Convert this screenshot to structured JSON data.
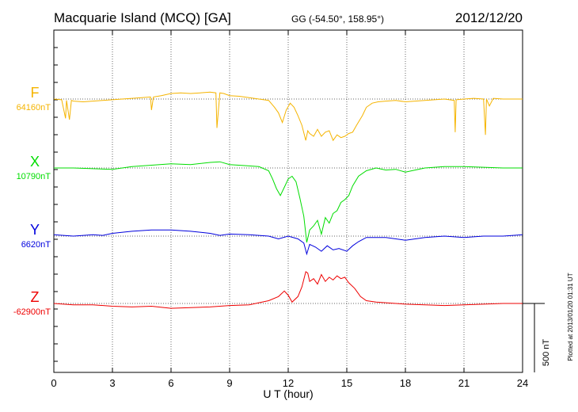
{
  "header": {
    "station": "Macquarie Island (MCQ)  [GA]",
    "coords": "GG (-54.50°, 158.95°)",
    "date": "2012/12/20"
  },
  "plotted_note": "Plotted at 2013/01/20 01:31  UT",
  "scale_bar_label": "500 nT",
  "chart_data": {
    "type": "line",
    "xlabel": "U T (hour)",
    "xlim": [
      0,
      24
    ],
    "xticks": [
      0,
      3,
      6,
      9,
      12,
      15,
      18,
      21,
      24
    ],
    "grid": true,
    "scale_bar_nT": 500,
    "series": [
      {
        "name": "F",
        "baseline_label": "64160nT",
        "color": "#f5b400",
        "x": [
          0,
          0.4,
          0.6,
          0.65,
          0.8,
          0.9,
          1.0,
          1.5,
          2.0,
          2.5,
          3.0,
          3.5,
          4.0,
          4.5,
          4.95,
          5.0,
          5.1,
          5.5,
          6.0,
          6.5,
          7.0,
          7.5,
          8.0,
          8.3,
          8.35,
          8.5,
          8.7,
          9.0,
          9.5,
          10.0,
          10.5,
          11.0,
          11.3,
          11.5,
          11.7,
          11.9,
          12.1,
          12.3,
          12.5,
          12.7,
          12.9,
          13.0,
          13.1,
          13.3,
          13.5,
          13.7,
          13.9,
          14.1,
          14.3,
          14.5,
          14.7,
          14.9,
          15.1,
          15.3,
          15.5,
          15.8,
          16.0,
          16.3,
          16.6,
          17.0,
          17.5,
          18.0,
          18.5,
          19.0,
          19.5,
          20.0,
          20.5,
          20.55,
          20.6,
          21.0,
          21.5,
          22.0,
          22.1,
          22.15,
          22.3,
          22.5,
          23.0,
          23.5,
          24.0
        ],
        "y": [
          0,
          -5,
          -140,
          -10,
          -150,
          -10,
          -15,
          -20,
          -15,
          -10,
          -5,
          0,
          5,
          10,
          15,
          -80,
          15,
          25,
          40,
          45,
          40,
          45,
          50,
          45,
          -210,
          45,
          40,
          25,
          20,
          10,
          0,
          -10,
          -60,
          -100,
          -170,
          -80,
          -30,
          -60,
          -120,
          -190,
          -300,
          -230,
          -250,
          -270,
          -220,
          -270,
          -240,
          -230,
          -300,
          -260,
          -280,
          -270,
          -250,
          -240,
          -190,
          -120,
          -60,
          -30,
          -20,
          -15,
          -10,
          -20,
          -15,
          -10,
          -5,
          0,
          -10,
          -240,
          -5,
          0,
          5,
          0,
          -260,
          0,
          -50,
          5,
          0,
          0,
          0
        ]
      },
      {
        "name": "X",
        "baseline_label": "10790nT",
        "color": "#00dd00",
        "x": [
          0,
          1.0,
          2.0,
          3.0,
          4.0,
          5.0,
          6.0,
          7.0,
          8.0,
          8.5,
          9.0,
          10.0,
          10.5,
          11.0,
          11.2,
          11.4,
          11.6,
          11.8,
          12.0,
          12.2,
          12.4,
          12.6,
          12.8,
          12.95,
          13.1,
          13.3,
          13.5,
          13.7,
          13.9,
          14.1,
          14.3,
          14.5,
          14.7,
          14.9,
          15.1,
          15.3,
          15.6,
          16.0,
          16.5,
          17.0,
          17.5,
          18.0,
          18.5,
          19.0,
          20.0,
          21.0,
          22.0,
          23.0,
          24.0
        ],
        "y": [
          0,
          0,
          -5,
          -10,
          10,
          20,
          30,
          25,
          40,
          45,
          25,
          15,
          10,
          -20,
          -80,
          -150,
          -200,
          -140,
          -80,
          -60,
          -100,
          -220,
          -350,
          -540,
          -450,
          -420,
          -380,
          -480,
          -360,
          -400,
          -330,
          -310,
          -250,
          -230,
          -200,
          -130,
          -60,
          -20,
          0,
          -15,
          -10,
          -30,
          -15,
          0,
          10,
          10,
          5,
          0,
          0
        ]
      },
      {
        "name": "Y",
        "baseline_label": "6620nT",
        "color": "#0000dd",
        "x": [
          0,
          1.0,
          2.0,
          2.5,
          3.0,
          4.0,
          5.0,
          6.0,
          7.0,
          8.0,
          8.5,
          9.0,
          10.0,
          10.5,
          11.0,
          11.5,
          12.0,
          12.5,
          12.8,
          12.95,
          13.1,
          13.4,
          13.7,
          14.0,
          14.3,
          14.6,
          15.0,
          15.3,
          15.6,
          16.0,
          17.0,
          18.0,
          19.0,
          20.0,
          21.0,
          22.0,
          23.0,
          24.0
        ],
        "y": [
          10,
          0,
          10,
          5,
          20,
          35,
          45,
          45,
          35,
          20,
          5,
          15,
          10,
          5,
          0,
          -20,
          0,
          -20,
          -50,
          -130,
          -60,
          -80,
          -110,
          -70,
          -100,
          -90,
          -110,
          -70,
          -40,
          -10,
          -10,
          -30,
          -10,
          0,
          -10,
          0,
          0,
          10
        ]
      },
      {
        "name": "Z",
        "baseline_label": "-62900nT",
        "color": "#ee0000",
        "x": [
          0,
          1.0,
          2.0,
          3.0,
          4.0,
          5.0,
          6.0,
          7.0,
          8.0,
          9.0,
          10.0,
          11.0,
          11.5,
          11.8,
          12.0,
          12.2,
          12.5,
          12.7,
          12.9,
          13.0,
          13.1,
          13.3,
          13.5,
          13.7,
          13.9,
          14.1,
          14.3,
          14.5,
          14.7,
          14.9,
          15.1,
          15.4,
          15.7,
          16.0,
          16.5,
          17.0,
          18.0,
          19.0,
          20.0,
          21.0,
          22.0,
          23.0,
          24.0
        ],
        "y": [
          0,
          -10,
          -10,
          -20,
          -25,
          -20,
          -35,
          -30,
          -25,
          -15,
          -10,
          20,
          50,
          90,
          60,
          10,
          50,
          120,
          230,
          220,
          160,
          180,
          140,
          210,
          160,
          190,
          170,
          200,
          180,
          190,
          150,
          110,
          50,
          20,
          10,
          5,
          -5,
          -10,
          -15,
          -10,
          -5,
          0,
          0
        ]
      }
    ]
  }
}
